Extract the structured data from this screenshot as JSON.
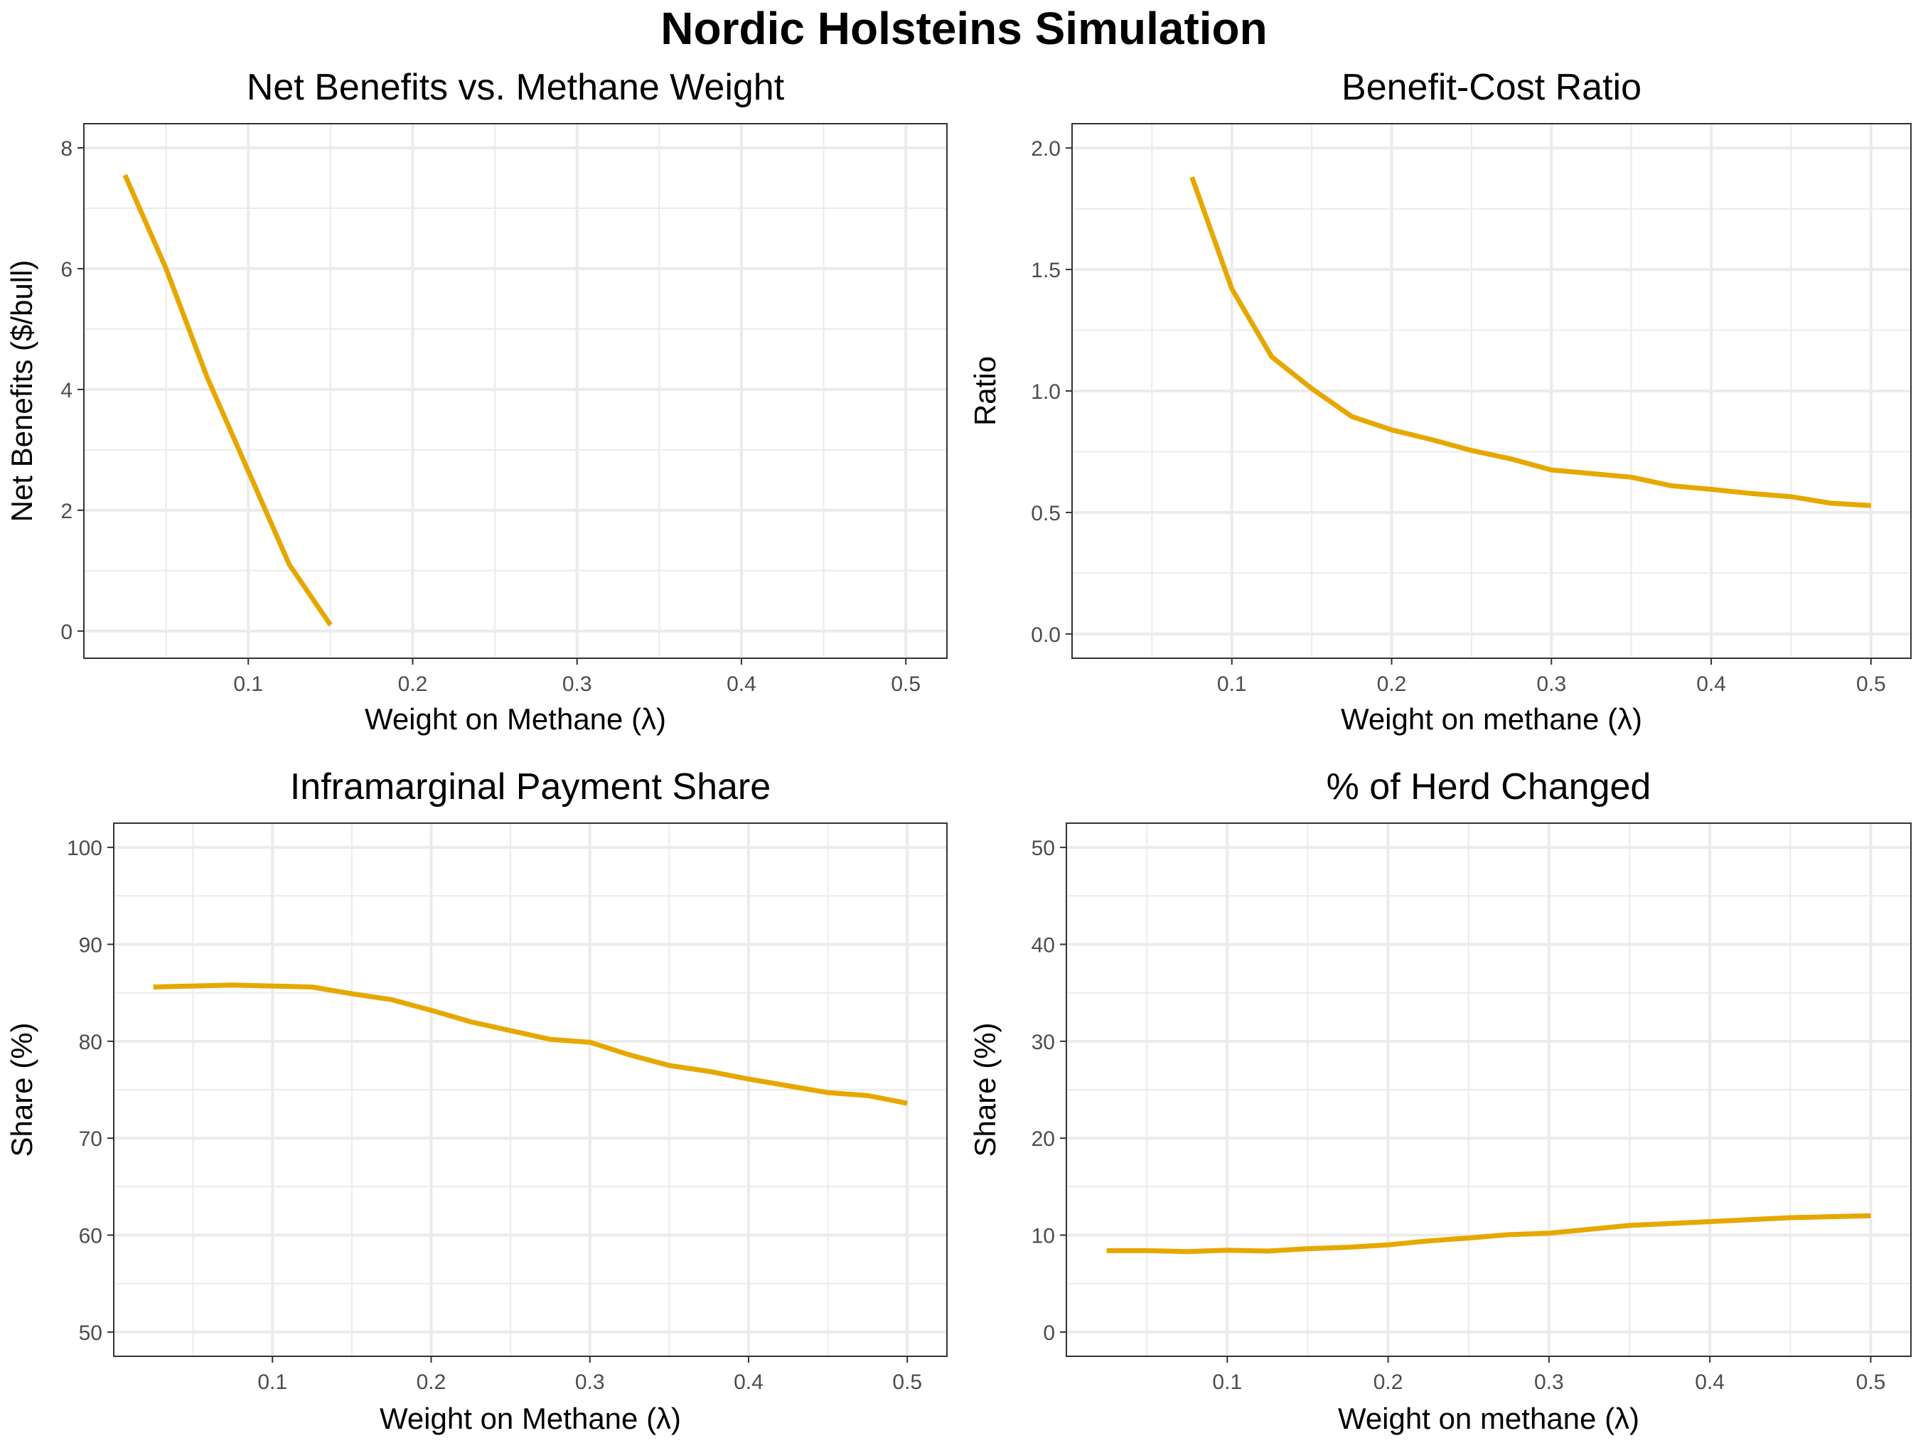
{
  "title": "Nordic Holsteins Simulation",
  "colors": {
    "line": "#E6A800",
    "grid": "#EBEBEB",
    "panel_border": "#333333",
    "text": "#000000",
    "tick_text": "#4D4D4D"
  },
  "chart_data": [
    {
      "type": "line",
      "title": "Net Benefits vs. Methane Weight",
      "xlabel": "Weight on Methane (λ)",
      "ylabel": "Net Benefits ($/bull)",
      "xlim": [
        0.0,
        0.525
      ],
      "ylim": [
        -0.45,
        8.4
      ],
      "xticks": [
        0.1,
        0.2,
        0.3,
        0.4,
        0.5
      ],
      "xtick_labels": [
        "0.1",
        "0.2",
        "0.3",
        "0.4",
        "0.5"
      ],
      "yticks": [
        0,
        2,
        4,
        6,
        8
      ],
      "ytick_labels": [
        "0",
        "2",
        "4",
        "6",
        "8"
      ],
      "grid": true,
      "series": [
        {
          "x": [
            0.025,
            0.05,
            0.075,
            0.1,
            0.125,
            0.15
          ],
          "y": [
            7.55,
            6.0,
            4.2,
            2.65,
            1.1,
            0.1
          ]
        }
      ]
    },
    {
      "type": "line",
      "title": "Benefit-Cost Ratio",
      "xlabel": "Weight on methane (λ)",
      "ylabel": "Ratio",
      "xlim": [
        0.0,
        0.525
      ],
      "ylim": [
        -0.1,
        2.1
      ],
      "xticks": [
        0.1,
        0.2,
        0.3,
        0.4,
        0.5
      ],
      "xtick_labels": [
        "0.1",
        "0.2",
        "0.3",
        "0.4",
        "0.5"
      ],
      "yticks": [
        0.0,
        0.5,
        1.0,
        1.5,
        2.0
      ],
      "ytick_labels": [
        "0.0",
        "0.5",
        "1.0",
        "1.5",
        "2.0"
      ],
      "grid": true,
      "series": [
        {
          "x": [
            0.075,
            0.1,
            0.125,
            0.15,
            0.175,
            0.2,
            0.225,
            0.25,
            0.275,
            0.3,
            0.325,
            0.35,
            0.375,
            0.4,
            0.425,
            0.45,
            0.475,
            0.5
          ],
          "y": [
            1.88,
            1.42,
            1.14,
            1.01,
            0.895,
            0.84,
            0.8,
            0.755,
            0.72,
            0.675,
            0.66,
            0.645,
            0.61,
            0.595,
            0.578,
            0.565,
            0.538,
            0.528
          ]
        }
      ]
    },
    {
      "type": "line",
      "title": "Inframarginal Payment Share",
      "xlabel": "Weight on Methane (λ)",
      "ylabel": "Share (%)",
      "xlim": [
        0.0,
        0.525
      ],
      "ylim": [
        47.5,
        102.5
      ],
      "xticks": [
        0.1,
        0.2,
        0.3,
        0.4,
        0.5
      ],
      "xtick_labels": [
        "0.1",
        "0.2",
        "0.3",
        "0.4",
        "0.5"
      ],
      "yticks": [
        50,
        60,
        70,
        80,
        90,
        100
      ],
      "ytick_labels": [
        "50",
        "60",
        "70",
        "80",
        "90",
        "100"
      ],
      "grid": true,
      "series": [
        {
          "x": [
            0.025,
            0.05,
            0.075,
            0.1,
            0.125,
            0.15,
            0.175,
            0.2,
            0.225,
            0.25,
            0.275,
            0.3,
            0.325,
            0.35,
            0.375,
            0.4,
            0.425,
            0.45,
            0.475,
            0.5
          ],
          "y": [
            85.6,
            85.7,
            85.8,
            85.7,
            85.6,
            84.9,
            84.3,
            83.2,
            82.0,
            81.1,
            80.2,
            79.9,
            78.6,
            77.5,
            76.9,
            76.1,
            75.4,
            74.7,
            74.4,
            73.6
          ]
        }
      ]
    },
    {
      "type": "line",
      "title": "% of Herd Changed",
      "xlabel": "Weight on methane (λ)",
      "ylabel": "Share (%)",
      "xlim": [
        0.0,
        0.525
      ],
      "ylim": [
        -2.5,
        52.5
      ],
      "xticks": [
        0.1,
        0.2,
        0.3,
        0.4,
        0.5
      ],
      "xtick_labels": [
        "0.1",
        "0.2",
        "0.3",
        "0.4",
        "0.5"
      ],
      "yticks": [
        0,
        10,
        20,
        30,
        40,
        50
      ],
      "ytick_labels": [
        "0",
        "10",
        "20",
        "30",
        "40",
        "50"
      ],
      "grid": true,
      "series": [
        {
          "x": [
            0.025,
            0.05,
            0.075,
            0.1,
            0.125,
            0.15,
            0.175,
            0.2,
            0.225,
            0.25,
            0.275,
            0.3,
            0.325,
            0.35,
            0.375,
            0.4,
            0.425,
            0.45,
            0.475,
            0.5
          ],
          "y": [
            8.4,
            8.4,
            8.3,
            8.45,
            8.35,
            8.6,
            8.75,
            9.0,
            9.4,
            9.7,
            10.05,
            10.2,
            10.6,
            11.0,
            11.2,
            11.4,
            11.6,
            11.8,
            11.9,
            12.0
          ]
        }
      ]
    }
  ]
}
